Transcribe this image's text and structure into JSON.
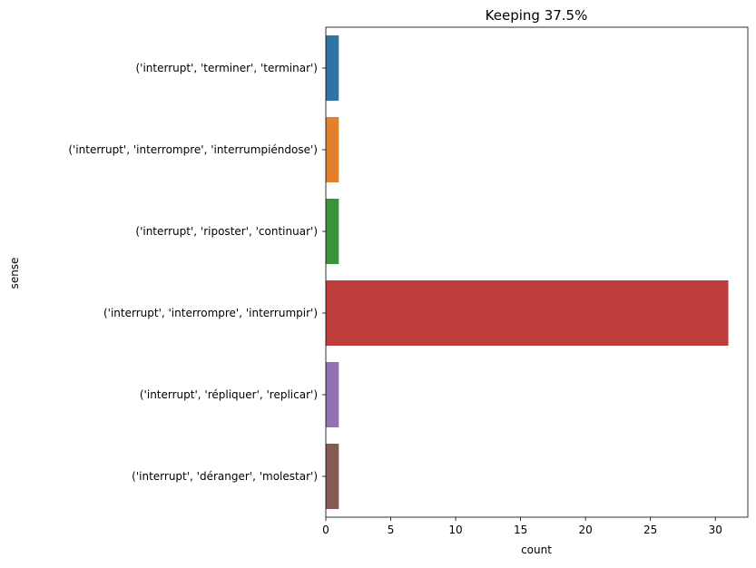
{
  "chart_data": {
    "type": "bar",
    "orientation": "horizontal",
    "title": "Keeping 37.5%",
    "xlabel": "count",
    "ylabel": "sense",
    "xlim": [
      0,
      32.5
    ],
    "xticks": [
      0,
      5,
      10,
      15,
      20,
      25,
      30
    ],
    "grid": false,
    "legend": "none",
    "categories": [
      "('interrupt', 'terminer', 'terminar')",
      "('interrupt', 'interrompre', 'interrumpiéndose')",
      "('interrupt', 'riposter', 'continuar')",
      "('interrupt', 'interrompre', 'interrumpir')",
      "('interrupt', 'répliquer', 'replicar')",
      "('interrupt', 'déranger', 'molestar')"
    ],
    "values": [
      1,
      1,
      1,
      31,
      1,
      1
    ],
    "colors": [
      "#3274a1",
      "#e1812c",
      "#3a923a",
      "#c03d3e",
      "#9372b2",
      "#845b53"
    ]
  }
}
